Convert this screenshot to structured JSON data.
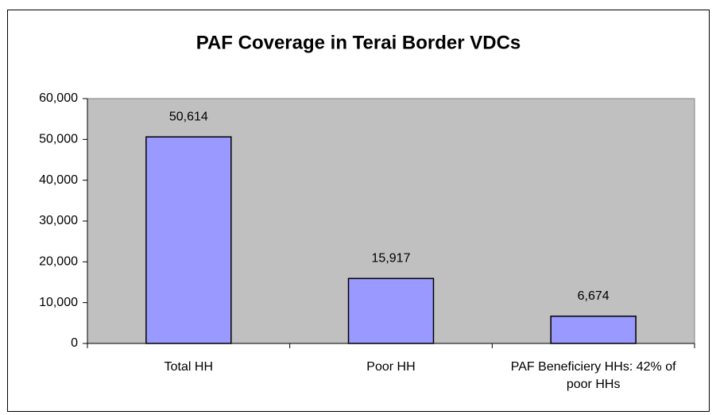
{
  "chart_data": {
    "type": "bar",
    "title": "PAF Coverage in Terai Border VDCs",
    "categories": [
      "Total HH",
      "Poor HH",
      "PAF Beneficiery HHs: 42% of poor HHs"
    ],
    "values": [
      50614,
      15917,
      6674
    ],
    "value_labels": [
      "50,614",
      "15,917",
      "6,674"
    ],
    "color": "#9999ff",
    "ylim": [
      0,
      60000
    ],
    "yticks": [
      0,
      {
        "value": 10000,
        "label": "10,000"
      },
      {
        "value": 20000,
        "label": "20,000"
      },
      {
        "value": 30000,
        "label": "30,000"
      },
      {
        "value": 40000,
        "label": "40,000"
      },
      {
        "value": 50000,
        "label": "50,000"
      },
      {
        "value": 60000,
        "label": "60,000"
      }
    ],
    "grid": false
  }
}
